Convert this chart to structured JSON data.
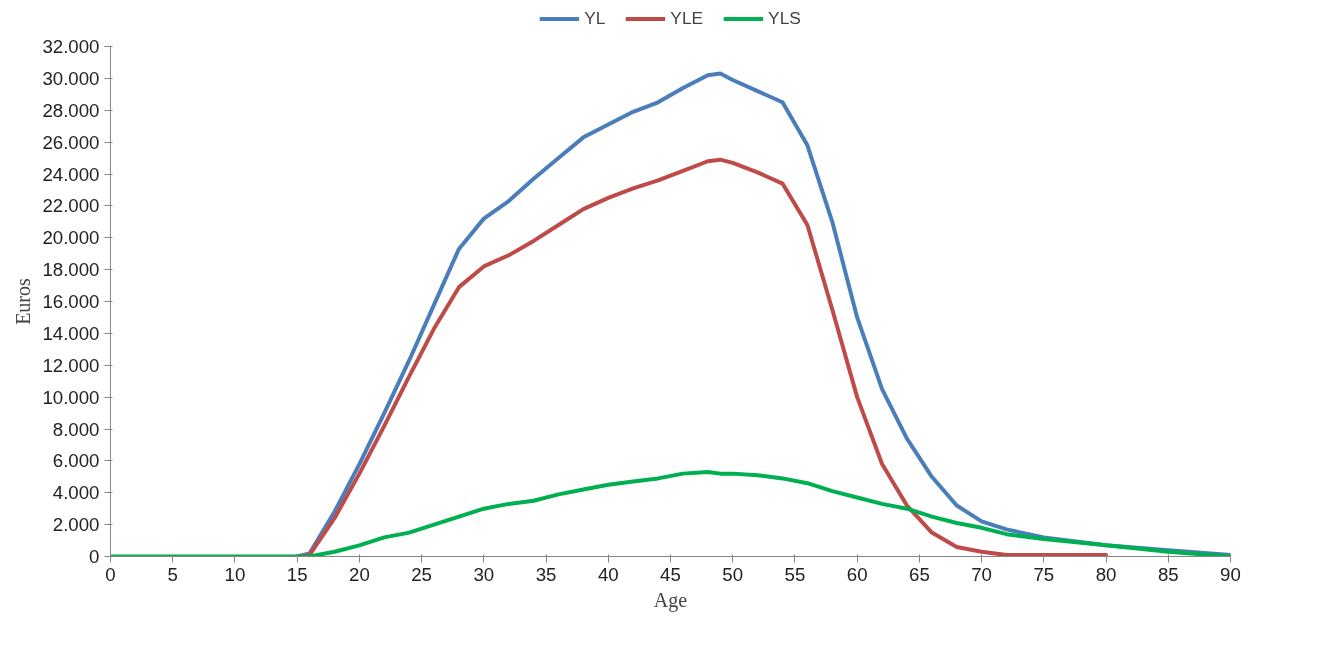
{
  "chart_data": {
    "type": "line",
    "xlabel": "Age",
    "ylabel": "Euros",
    "x": [
      0,
      5,
      10,
      15,
      16,
      18,
      20,
      22,
      24,
      26,
      28,
      30,
      32,
      34,
      36,
      38,
      40,
      42,
      44,
      46,
      48,
      49,
      50,
      52,
      54,
      56,
      58,
      60,
      62,
      64,
      66,
      68,
      70,
      72,
      75,
      80,
      85,
      90
    ],
    "series": [
      {
        "name": "YL",
        "color": "#4a7ebb",
        "x": [
          15,
          16,
          18,
          20,
          22,
          24,
          26,
          28,
          30,
          32,
          34,
          36,
          38,
          40,
          42,
          44,
          46,
          48,
          49,
          50,
          52,
          54,
          56,
          58,
          60,
          62,
          64,
          66,
          68,
          70,
          72,
          75,
          80,
          85,
          90
        ],
        "values": [
          0,
          200,
          2800,
          5800,
          9000,
          12300,
          15800,
          19300,
          21200,
          22300,
          23700,
          25000,
          26300,
          27100,
          27900,
          28500,
          29400,
          30200,
          30300,
          29900,
          29200,
          28500,
          25800,
          21000,
          15000,
          10500,
          7400,
          5000,
          3200,
          2200,
          1700,
          1200,
          700,
          400,
          100
        ]
      },
      {
        "name": "YLE",
        "color": "#be4b48",
        "x": [
          15,
          16,
          18,
          20,
          22,
          24,
          26,
          28,
          30,
          32,
          34,
          36,
          38,
          40,
          42,
          44,
          46,
          48,
          49,
          50,
          52,
          54,
          56,
          58,
          60,
          62,
          64,
          66,
          68,
          70,
          72,
          75,
          80
        ],
        "values": [
          0,
          100,
          2400,
          5200,
          8200,
          11300,
          14300,
          16900,
          18200,
          18900,
          19800,
          20800,
          21800,
          22500,
          23100,
          23600,
          24200,
          24800,
          24900,
          24700,
          24100,
          23400,
          20800,
          15500,
          10000,
          5800,
          3200,
          1500,
          600,
          300,
          100,
          100,
          100
        ]
      },
      {
        "name": "YLS",
        "color": "#00b050",
        "values": [
          0,
          0,
          0,
          0,
          0,
          300,
          700,
          1200,
          1500,
          2000,
          2500,
          3000,
          3300,
          3500,
          3900,
          4200,
          4500,
          4700,
          4900,
          5200,
          5300,
          5200,
          5200,
          5100,
          4900,
          4600,
          4100,
          3700,
          3300,
          3000,
          2500,
          2100,
          1800,
          1400,
          1100,
          700,
          300,
          0
        ]
      }
    ],
    "xlim": [
      0,
      90
    ],
    "xticks": [
      0,
      5,
      10,
      15,
      20,
      25,
      30,
      35,
      40,
      45,
      50,
      55,
      60,
      65,
      70,
      75,
      80,
      85,
      90
    ],
    "ylim": [
      0,
      32000
    ],
    "yticks": [
      {
        "value": 0,
        "label": "0"
      },
      {
        "value": 2000,
        "label": "2.000"
      },
      {
        "value": 4000,
        "label": "4.000"
      },
      {
        "value": 6000,
        "label": "6.000"
      },
      {
        "value": 8000,
        "label": "8.000"
      },
      {
        "value": 10000,
        "label": "10.000"
      },
      {
        "value": 12000,
        "label": "12.000"
      },
      {
        "value": 14000,
        "label": "14.000"
      },
      {
        "value": 16000,
        "label": "16.000"
      },
      {
        "value": 18000,
        "label": "18.000"
      },
      {
        "value": 20000,
        "label": "20.000"
      },
      {
        "value": 22000,
        "label": "22.000"
      },
      {
        "value": 24000,
        "label": "24.000"
      },
      {
        "value": 26000,
        "label": "26.000"
      },
      {
        "value": 28000,
        "label": "28.000"
      },
      {
        "value": 30000,
        "label": "30.000"
      },
      {
        "value": 32000,
        "label": "32.000"
      }
    ],
    "grid": false,
    "legend": "top",
    "marker": "none",
    "line_style": "solid"
  }
}
